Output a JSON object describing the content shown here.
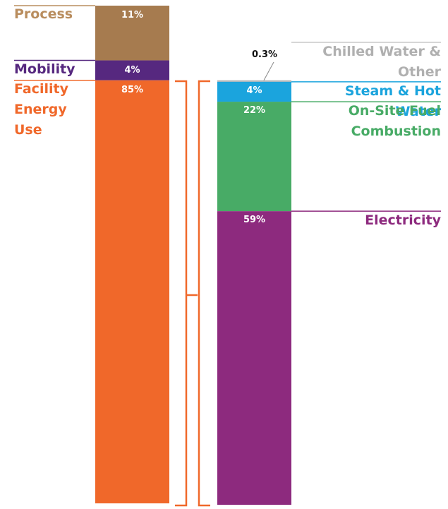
{
  "chart_data": {
    "type": "stacked_bar",
    "stacks": [
      {
        "names": [
          "Process",
          "Mobility",
          "Facility Energy Use"
        ],
        "colors": [
          "#a67b4f",
          "#56287f",
          "#f0682a"
        ],
        "label_colors": [
          "#b98d5e",
          "#56287f",
          "#f0682a"
        ],
        "values": [
          11,
          4,
          85
        ],
        "value_labels": [
          "11%",
          "4%",
          "85%"
        ]
      },
      {
        "names": [
          "Chilled Water & Other",
          "Steam & Hot Water",
          "On-Site Fuel Combustion",
          "Electricity"
        ],
        "colors": [
          "#b4b4b4",
          "#1ba4dd",
          "#48ab66",
          "#8d2a7e"
        ],
        "label_colors": [
          "#b0b0b0",
          "#1ba4dd",
          "#48ab66",
          "#8d2a7e"
        ],
        "values": [
          0.3,
          4,
          22,
          59
        ],
        "value_labels": [
          "0.3%",
          "4%",
          "22%",
          "59%"
        ]
      }
    ]
  }
}
